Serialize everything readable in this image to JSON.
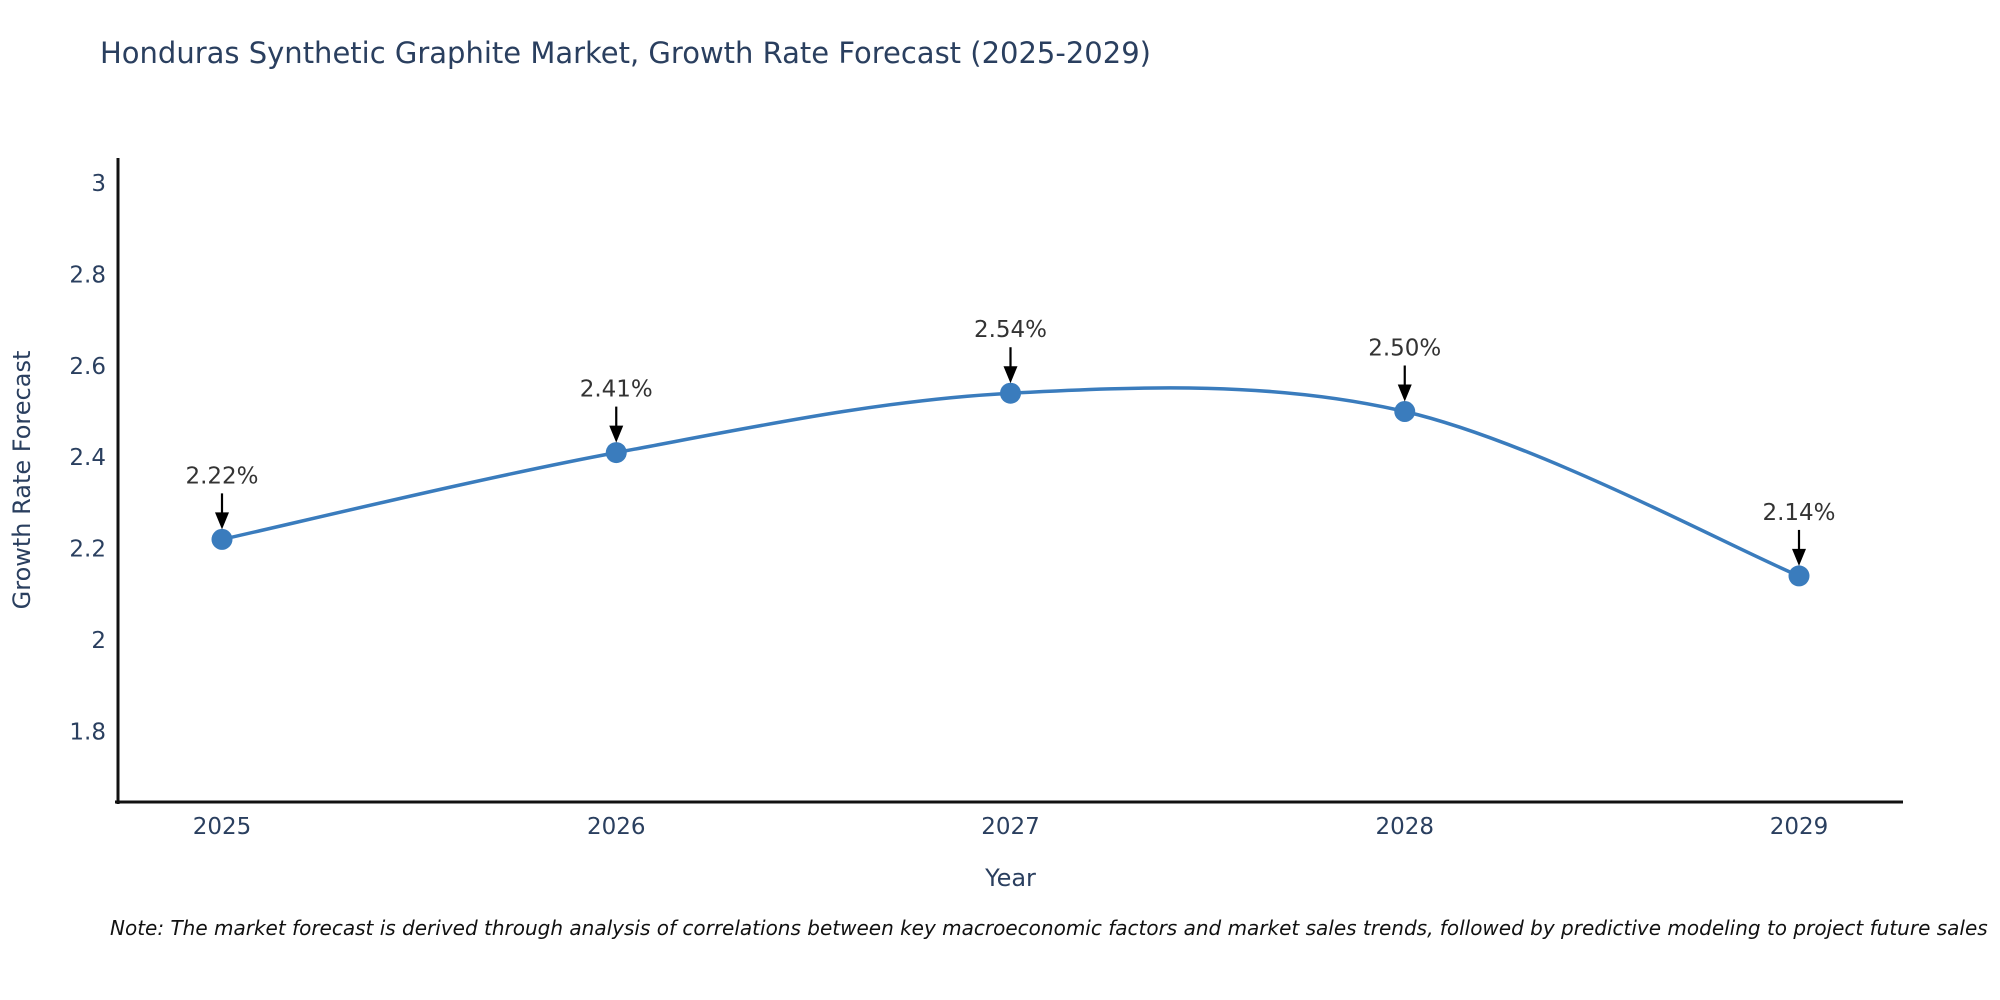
{
  "chart": {
    "title": "Honduras Synthetic Graphite Market, Growth Rate Forecast (2025-2029)",
    "note": "Note: The market forecast is derived through analysis of correlations between key macroeconomic factors and market sales trends, followed by predictive modeling to project future sales"
  },
  "chart_data": {
    "type": "line",
    "title": "Honduras Synthetic Graphite Market, Growth Rate Forecast (2025-2029)",
    "xlabel": "Year",
    "ylabel": "Growth Rate Forecast",
    "categories": [
      "2025",
      "2026",
      "2027",
      "2028",
      "2029"
    ],
    "values": [
      2.22,
      2.41,
      2.54,
      2.5,
      2.14
    ],
    "point_labels": [
      "2.22%",
      "2.41%",
      "2.54%",
      "2.50%",
      "2.14%"
    ],
    "ytick_labels": [
      "1.8",
      "2",
      "2.2",
      "2.4",
      "2.6",
      "2.8",
      "3"
    ],
    "ytick_values": [
      1.8,
      2.0,
      2.2,
      2.4,
      2.6,
      2.8,
      3.0
    ],
    "ylim": [
      1.645,
      3.055
    ],
    "line_shape": "spline",
    "grid": false,
    "legend_position": "none",
    "colors": {
      "line": "#3a7cbd",
      "marker": "#3a7cbd",
      "axis_line": "#111111",
      "tick_text": "#2a3f5f",
      "title_text": "#2a3f5f",
      "axis_title_text": "#2a3f5f",
      "annotation_text": "#333333",
      "arrow": "#000000"
    }
  }
}
